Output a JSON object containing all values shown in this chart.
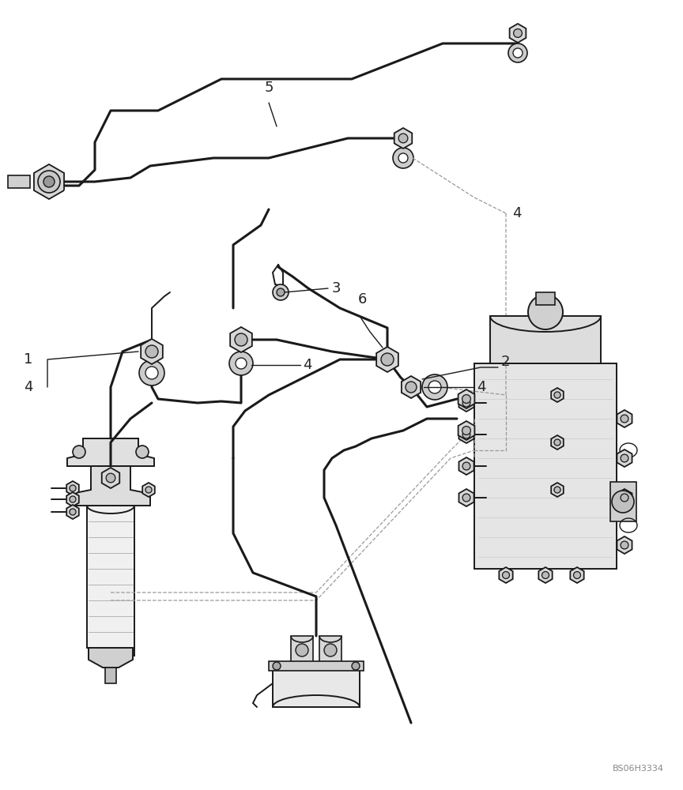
{
  "bg_color": "#ffffff",
  "line_color": "#1a1a1a",
  "dashed_color": "#999999",
  "text_color": "#222222",
  "watermark": "BS06H3334",
  "figsize": [
    8.64,
    10.0
  ],
  "dpi": 100,
  "lw_pipe": 2.2,
  "lw_detail": 1.4,
  "lw_thin": 1.0,
  "note_fontsize": 13
}
